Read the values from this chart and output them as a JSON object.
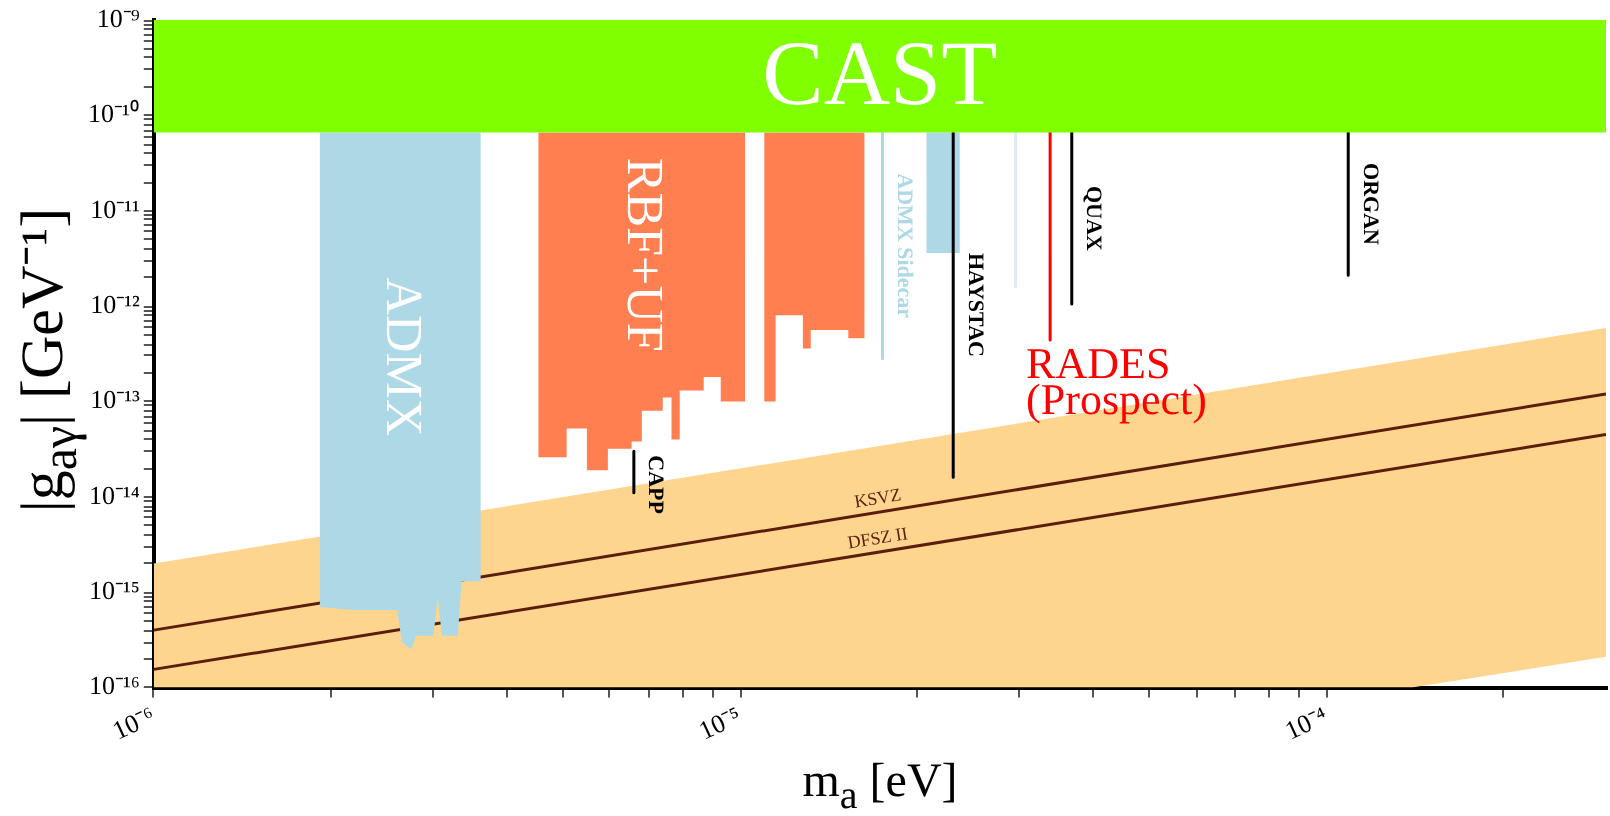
{
  "chart_data": {
    "type": "area",
    "xlabel": "m$_{a}$ [eV]",
    "ylabel": "|g$_{aγ}$| [GeV⁻¹]",
    "log": "xy",
    "grid": false,
    "legend": false,
    "xlim": [
      1e-06,
      0.0003
    ],
    "ylim": [
      1e-16,
      1e-09
    ],
    "xticks": [
      {
        "value": 1e-06,
        "label": "10⁻⁶"
      },
      {
        "value": 2e-06,
        "label": null
      },
      {
        "value": 3e-06,
        "label": null
      },
      {
        "value": 4e-06,
        "label": null
      },
      {
        "value": 5e-06,
        "label": null
      },
      {
        "value": 6e-06,
        "label": null
      },
      {
        "value": 7e-06,
        "label": null
      },
      {
        "value": 8e-06,
        "label": null
      },
      {
        "value": 9e-06,
        "label": null
      },
      {
        "value": 1e-05,
        "label": "10⁻⁵"
      },
      {
        "value": 2e-05,
        "label": null
      },
      {
        "value": 3e-05,
        "label": null
      },
      {
        "value": 4e-05,
        "label": null
      },
      {
        "value": 5e-05,
        "label": null
      },
      {
        "value": 6e-05,
        "label": null
      },
      {
        "value": 7e-05,
        "label": null
      },
      {
        "value": 8e-05,
        "label": null
      },
      {
        "value": 9e-05,
        "label": null
      },
      {
        "value": 0.0001,
        "label": "10⁻⁴"
      },
      {
        "value": 0.0002,
        "label": null
      }
    ],
    "yticks": [
      {
        "value": 1e-16,
        "label": "10⁻¹⁶"
      },
      {
        "value": 2e-16,
        "label": null
      },
      {
        "value": 3e-16,
        "label": null
      },
      {
        "value": 4e-16,
        "label": null
      },
      {
        "value": 5e-16,
        "label": null
      },
      {
        "value": 6e-16,
        "label": null
      },
      {
        "value": 7e-16,
        "label": null
      },
      {
        "value": 8e-16,
        "label": null
      },
      {
        "value": 9e-16,
        "label": null
      },
      {
        "value": 1e-15,
        "label": "10⁻¹⁵"
      },
      {
        "value": 2e-15,
        "label": null
      },
      {
        "value": 3e-15,
        "label": null
      },
      {
        "value": 4e-15,
        "label": null
      },
      {
        "value": 5e-15,
        "label": null
      },
      {
        "value": 6e-15,
        "label": null
      },
      {
        "value": 7e-15,
        "label": null
      },
      {
        "value": 8e-15,
        "label": null
      },
      {
        "value": 9e-15,
        "label": null
      },
      {
        "value": 1e-14,
        "label": "10⁻¹⁴"
      },
      {
        "value": 2e-14,
        "label": null
      },
      {
        "value": 3e-14,
        "label": null
      },
      {
        "value": 4e-14,
        "label": null
      },
      {
        "value": 5e-14,
        "label": null
      },
      {
        "value": 6e-14,
        "label": null
      },
      {
        "value": 7e-14,
        "label": null
      },
      {
        "value": 8e-14,
        "label": null
      },
      {
        "value": 9e-14,
        "label": null
      },
      {
        "value": 1e-13,
        "label": "10⁻¹³"
      },
      {
        "value": 2e-13,
        "label": null
      },
      {
        "value": 3e-13,
        "label": null
      },
      {
        "value": 4e-13,
        "label": null
      },
      {
        "value": 5e-13,
        "label": null
      },
      {
        "value": 6e-13,
        "label": null
      },
      {
        "value": 7e-13,
        "label": null
      },
      {
        "value": 8e-13,
        "label": null
      },
      {
        "value": 9e-13,
        "label": null
      },
      {
        "value": 1e-12,
        "label": "10⁻¹²"
      },
      {
        "value": 2e-12,
        "label": null
      },
      {
        "value": 3e-12,
        "label": null
      },
      {
        "value": 4e-12,
        "label": null
      },
      {
        "value": 5e-12,
        "label": null
      },
      {
        "value": 6e-12,
        "label": null
      },
      {
        "value": 7e-12,
        "label": null
      },
      {
        "value": 8e-12,
        "label": null
      },
      {
        "value": 9e-12,
        "label": null
      },
      {
        "value": 1e-11,
        "label": "10⁻¹¹"
      },
      {
        "value": 2e-11,
        "label": null
      },
      {
        "value": 3e-11,
        "label": null
      },
      {
        "value": 4e-11,
        "label": null
      },
      {
        "value": 5e-11,
        "label": null
      },
      {
        "value": 6e-11,
        "label": null
      },
      {
        "value": 7e-11,
        "label": null
      },
      {
        "value": 8e-11,
        "label": null
      },
      {
        "value": 9e-11,
        "label": null
      },
      {
        "value": 1e-10,
        "label": "10⁻¹⁰"
      },
      {
        "value": 2e-10,
        "label": null
      },
      {
        "value": 3e-10,
        "label": null
      },
      {
        "value": 4e-10,
        "label": null
      },
      {
        "value": 5e-10,
        "label": null
      },
      {
        "value": 6e-10,
        "label": null
      },
      {
        "value": 7e-10,
        "label": null
      },
      {
        "value": 8e-10,
        "label": null
      },
      {
        "value": 9e-10,
        "label": null
      },
      {
        "value": 1e-09,
        "label": "10⁻⁹"
      }
    ],
    "series": [
      {
        "color": "#fed58f",
        "x": [
          1e-06,
          0.00014,
          0.0003,
          0.0003,
          0.00014,
          1e-06
        ],
        "values": [
          1e-16,
          1e-16,
          2.1e-16,
          5.9e-13,
          2.75e-13,
          2e-15
        ]
      },
      {
        "type": "line",
        "name": "KSVZ",
        "color": "#5a1e0a",
        "x": [
          1e-06,
          0.0003
        ],
        "values": [
          4e-16,
          1.2e-13
        ]
      },
      {
        "type": "line",
        "name": "DFSZ II",
        "color": "#5a1e0a",
        "x": [
          1e-06,
          0.0003
        ],
        "values": [
          1.55e-16,
          4.5e-14
        ]
      },
      {
        "name": "ADMX",
        "color": "#add8e6",
        "x": [
          1.92e-06,
          2.2e-06,
          2.6e-06,
          2.65e-06,
          2.75e-06,
          2.8e-06,
          3e-06,
          3.05e-06,
          3.1e-06,
          3.3e-06,
          3.35e-06,
          3.61e-06,
          3.61e-06,
          1.92e-06
        ],
        "values": [
          7e-16,
          6.5e-16,
          6.5e-16,
          3e-16,
          2.5e-16,
          3.5e-16,
          3.5e-16,
          9e-16,
          3.5e-16,
          3.5e-16,
          1.3e-15,
          1.3e-15,
          6.6e-11,
          6.6e-11
        ]
      },
      {
        "name": "RBF+UF",
        "color": "#ff7f50",
        "x": [
          4.53e-06,
          5.06e-06,
          5.06e-06,
          5.48e-06,
          5.48e-06,
          5.95e-06,
          5.95e-06,
          6.53e-06,
          6.53e-06,
          6.8e-06,
          6.8e-06,
          7.38e-06,
          7.38e-06,
          7.64e-06,
          7.64e-06,
          7.89e-06,
          7.89e-06,
          8.67e-06,
          8.67e-06,
          9.27e-06,
          9.27e-06,
          1.02e-05,
          1.02e-05,
          4.53e-06
        ],
        "values": [
          2.6e-14,
          2.6e-14,
          5.2e-14,
          5.2e-14,
          1.9e-14,
          1.9e-14,
          3.2e-14,
          3.2e-14,
          3.8e-14,
          3.8e-14,
          8e-14,
          8e-14,
          1.1e-13,
          1.1e-13,
          4e-14,
          4e-14,
          1.3e-13,
          1.3e-13,
          1.8e-13,
          1.8e-13,
          1e-13,
          1e-13,
          6.6e-11,
          6.6e-11
        ]
      },
      {
        "color": "#ff7f50",
        "x": [
          1.1e-05,
          1.15e-05,
          1.15e-05,
          1.28e-05,
          1.28e-05,
          1.32e-05,
          1.32e-05,
          1.53e-05,
          1.53e-05,
          1.63e-05,
          1.63e-05,
          1.1e-05
        ],
        "values": [
          1e-13,
          1e-13,
          8e-13,
          8e-13,
          3.6e-13,
          3.6e-13,
          5.6e-13,
          5.6e-13,
          4.6e-13,
          4.6e-13,
          6.6e-11,
          6.6e-11
        ]
      },
      {
        "color": "#add8e6",
        "x": [
          2.08e-05,
          2.37e-05,
          2.37e-05,
          2.08e-05
        ],
        "values": [
          3.6e-12,
          3.6e-12,
          6.6e-11,
          6.6e-11
        ]
      },
      {
        "type": "line",
        "name": "ADMX Sidecar",
        "color": "#add8e6",
        "x": [
          1.75e-05,
          1.75e-05
        ],
        "values": [
          6.6e-11,
          2.8e-13
        ]
      },
      {
        "type": "line",
        "color": "#d9eef5",
        "x": [
          2.95e-05,
          2.95e-05
        ],
        "values": [
          6.6e-11,
          1.6e-12
        ]
      },
      {
        "type": "line",
        "name": "CAPP",
        "color": "#000000",
        "x": [
          6.59e-06,
          6.59e-06
        ],
        "values": [
          3e-14,
          1.1e-14
        ]
      },
      {
        "type": "line",
        "name": "HAYSTAC",
        "color": "#000000",
        "x": [
          2.31e-05,
          2.31e-05
        ],
        "values": [
          6.6e-11,
          1.6e-14
        ]
      },
      {
        "type": "line",
        "color": "#ff0000",
        "x": [
          3.38e-05,
          3.38e-05
        ],
        "values": [
          6.6e-11,
          4.4e-13
        ]
      },
      {
        "type": "line",
        "name": "QUAX",
        "color": "#000000",
        "x": [
          3.68e-05,
          3.68e-05
        ],
        "values": [
          6.6e-11,
          1.05e-12
        ]
      },
      {
        "type": "line",
        "name": "ORGAN",
        "color": "#000000",
        "x": [
          0.000109,
          0.000109
        ],
        "values": [
          6.6e-11,
          2.1e-12
        ]
      },
      {
        "name": "CAST",
        "color": "#7fff00",
        "x": [
          1e-06,
          0.0003,
          0.0003,
          1e-06
        ],
        "values": [
          6.6e-11,
          6.6e-11,
          1e-09,
          1e-09
        ]
      }
    ],
    "annotations": [
      {
        "text": "RADES (Prospect)",
        "x": 3.38e-05,
        "y": 4.4e-13
      }
    ]
  }
}
